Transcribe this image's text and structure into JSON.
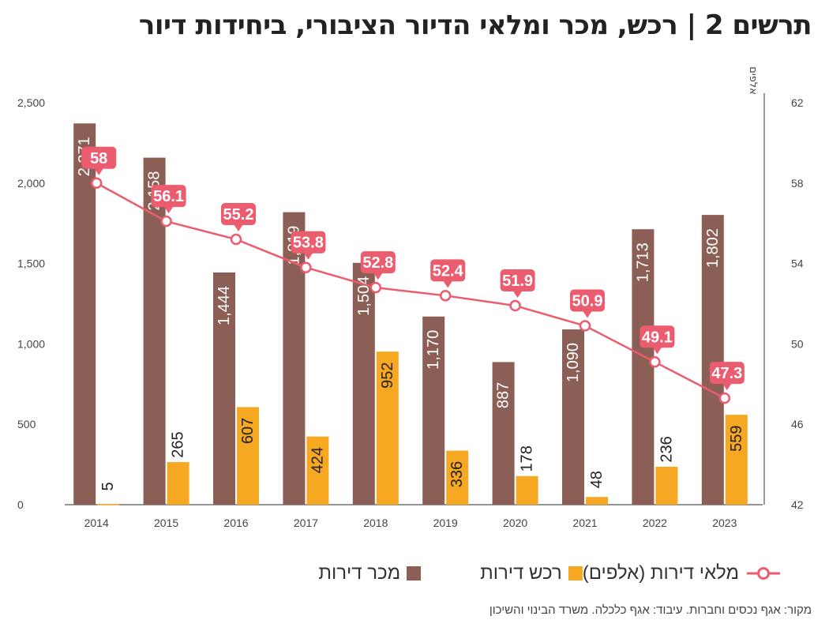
{
  "title": "תרשים 2 | רכש, מכר ומלאי הדיור הציבורי, ביחידות דיור",
  "source": "מקור: אגף נכסים וחברות. עיבוד: אגף כלכלה. משרד הבינוי והשיכון",
  "colors": {
    "sold": "#8B5F55",
    "purchased": "#F7A823",
    "inventory": "#EB5C6E",
    "axis": "#555555"
  },
  "legend": {
    "inventory": "מלאי דירות (אלפים)",
    "purchased": "רכש דירות",
    "sold": "מכר דירות"
  },
  "chart_data": {
    "type": "bar",
    "categories": [
      "2014",
      "2015",
      "2016",
      "2017",
      "2018",
      "2019",
      "2020",
      "2021",
      "2022",
      "2023"
    ],
    "series": [
      {
        "name": "מכר דירות",
        "type": "bar",
        "axis": "left",
        "values": [
          2371,
          2158,
          1444,
          1819,
          1504,
          1170,
          887,
          1090,
          1713,
          1802
        ]
      },
      {
        "name": "רכש דירות",
        "type": "bar",
        "axis": "left",
        "values": [
          5,
          265,
          607,
          424,
          952,
          336,
          178,
          48,
          236,
          559
        ]
      },
      {
        "name": "מלאי דירות (אלפים)",
        "type": "line",
        "axis": "right",
        "values": [
          58,
          56.1,
          55.2,
          53.8,
          52.8,
          52.4,
          51.9,
          50.9,
          49.1,
          47.3
        ]
      }
    ],
    "y_left": {
      "range": [
        0,
        2500
      ],
      "ticks": [
        "0",
        "500",
        "1,000",
        "1,500",
        "2,000",
        "2,500"
      ]
    },
    "y_right": {
      "label": "אלפים",
      "range": [
        42,
        62
      ],
      "ticks": [
        "42",
        "46",
        "50",
        "54",
        "58",
        "62"
      ]
    },
    "grid": false,
    "legend_position": "bottom"
  }
}
